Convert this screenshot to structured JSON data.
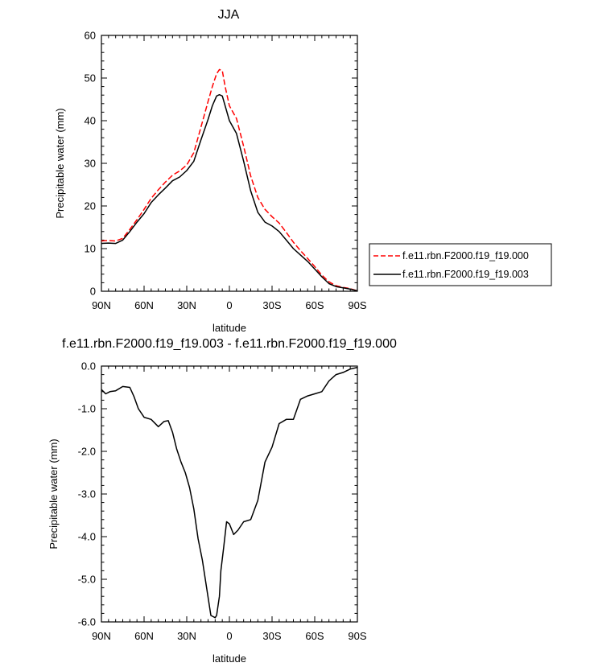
{
  "chart_data": [
    {
      "type": "line",
      "title": "JJA",
      "xlabel": "latitude",
      "ylabel": "Precipitable water (mm)",
      "xticks": [
        "90N",
        "60N",
        "30N",
        "0",
        "30S",
        "60S",
        "90S"
      ],
      "xlim": [
        90,
        -90
      ],
      "ylim": [
        0,
        60
      ],
      "yticks": [
        "0",
        "10",
        "20",
        "30",
        "40",
        "50",
        "60"
      ],
      "grid": false,
      "legend_position": "right",
      "series": [
        {
          "name": "f.e11.rbn.F2000.f19_f19.000",
          "color": "#ff0000",
          "dash": "dashed",
          "x": [
            90,
            85,
            80,
            75,
            70,
            65,
            60,
            55,
            50,
            45,
            40,
            35,
            30,
            25,
            20,
            15,
            12,
            9,
            7,
            5,
            3,
            0,
            -5,
            -10,
            -15,
            -20,
            -25,
            -30,
            -35,
            -40,
            -45,
            -50,
            -55,
            -60,
            -65,
            -70,
            -75,
            -80,
            -85,
            -90
          ],
          "y": [
            11.8,
            11.9,
            11.8,
            12.4,
            14.5,
            16.8,
            19.2,
            21.8,
            23.8,
            25.6,
            27.2,
            28.2,
            29.6,
            32.5,
            38.5,
            44.5,
            48,
            51,
            52,
            51.7,
            48,
            43.5,
            40.5,
            34,
            27,
            22,
            19.2,
            17.5,
            16,
            13.8,
            11.5,
            9.5,
            7.7,
            5.8,
            3.8,
            2.2,
            1.3,
            0.9,
            0.6,
            0.1
          ]
        },
        {
          "name": "f.e11.rbn.F2000.f19_f19.003",
          "color": "#000000",
          "dash": "solid",
          "x": [
            90,
            85,
            80,
            75,
            70,
            65,
            60,
            55,
            50,
            45,
            40,
            35,
            30,
            25,
            20,
            15,
            12,
            9,
            7,
            5,
            3,
            0,
            -5,
            -10,
            -15,
            -20,
            -25,
            -30,
            -35,
            -40,
            -45,
            -50,
            -55,
            -60,
            -65,
            -70,
            -75,
            -80,
            -85,
            -90
          ],
          "y": [
            11.2,
            11.3,
            11.2,
            12,
            14,
            16.2,
            18.2,
            20.8,
            22.6,
            24.2,
            25.9,
            26.8,
            28.3,
            30.5,
            35.5,
            40.3,
            43.5,
            45.8,
            46.1,
            45.8,
            43.5,
            40,
            37,
            30.5,
            23.5,
            18.5,
            16.2,
            15.3,
            14,
            12,
            10,
            8.5,
            7,
            5.2,
            3.4,
            1.8,
            1.1,
            0.8,
            0.5,
            0.1
          ]
        }
      ]
    },
    {
      "type": "line",
      "title": "f.e11.rbn.F2000.f19_f19.003 - f.e11.rbn.F2000.f19_f19.000",
      "xlabel": "latitude",
      "ylabel": "Precipitable water (mm)",
      "xticks": [
        "90N",
        "60N",
        "30N",
        "0",
        "30S",
        "60S",
        "90S"
      ],
      "xlim": [
        90,
        -90
      ],
      "ylim": [
        -6,
        0
      ],
      "yticks": [
        "0.0",
        "-1.0",
        "-2.0",
        "-3.0",
        "-4.0",
        "-5.0",
        "-6.0"
      ],
      "grid": false,
      "series": [
        {
          "color": "#000000",
          "dash": "solid",
          "x": [
            90,
            87,
            84,
            80,
            75,
            70,
            67,
            64,
            60,
            55,
            50,
            46,
            43,
            40,
            37,
            34,
            31,
            28,
            25,
            22,
            19,
            16,
            13,
            10,
            9,
            7,
            6,
            4,
            2,
            0,
            -3,
            -6,
            -10,
            -15,
            -20,
            -25,
            -30,
            -35,
            -40,
            -45,
            -50,
            -55,
            -60,
            -65,
            -70,
            -75,
            -80,
            -85,
            -90
          ],
          "y": [
            -0.55,
            -0.65,
            -0.6,
            -0.58,
            -0.48,
            -0.5,
            -0.72,
            -1.0,
            -1.2,
            -1.25,
            -1.42,
            -1.3,
            -1.28,
            -1.55,
            -1.95,
            -2.25,
            -2.5,
            -2.85,
            -3.35,
            -4.05,
            -4.55,
            -5.2,
            -5.85,
            -5.9,
            -5.85,
            -5.4,
            -4.8,
            -4.25,
            -3.65,
            -3.7,
            -3.95,
            -3.85,
            -3.65,
            -3.6,
            -3.15,
            -2.25,
            -1.9,
            -1.35,
            -1.25,
            -1.25,
            -0.78,
            -0.7,
            -0.65,
            -0.6,
            -0.35,
            -0.2,
            -0.15,
            -0.07,
            -0.03
          ]
        }
      ]
    }
  ]
}
